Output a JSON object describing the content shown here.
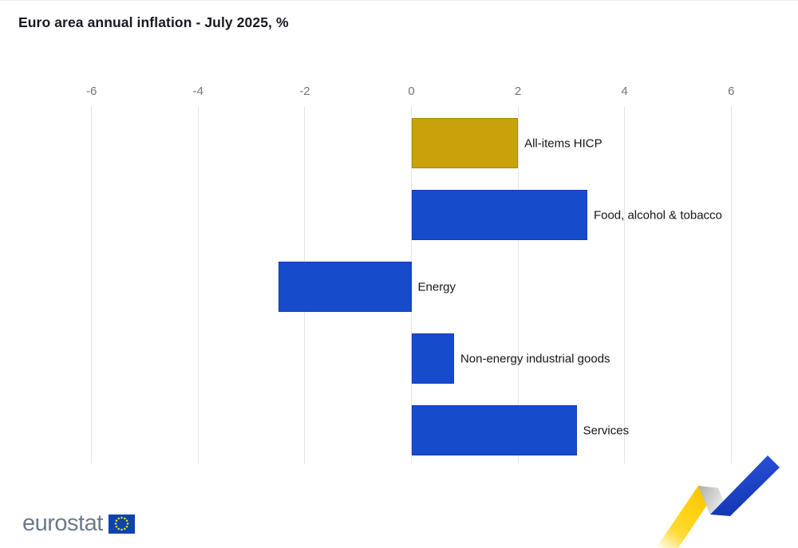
{
  "title": "Euro area annual inflation - July 2025, %",
  "chart_data": {
    "type": "bar",
    "orientation": "horizontal",
    "title": "Euro area annual inflation - July 2025, %",
    "unit": "%",
    "categories": [
      "All-items HICP",
      "Food, alcohol & tobacco",
      "Energy",
      "Non-energy industrial goods",
      "Services"
    ],
    "values": [
      2.0,
      3.3,
      -2.5,
      0.8,
      3.1
    ],
    "bar_colors": [
      "#C8A20A",
      "#164BCB",
      "#164BCB",
      "#164BCB",
      "#164BCB"
    ],
    "xticks": [
      -6,
      -4,
      -2,
      0,
      2,
      4,
      6
    ],
    "xlim": [
      -7.5,
      7.2
    ],
    "grid": true,
    "legend": false,
    "axis_position": "top"
  },
  "colors": {
    "gold": "#C8A20A",
    "blue": "#164BCB",
    "gridline": "#e4e4e4",
    "axis_text": "#757575",
    "label_text": "#141414",
    "title_text": "#181822",
    "logo_gray": "#6d7a88",
    "eu_flag_blue": "#0d43ad",
    "star_yellow": "#ffd617",
    "ribbon_yellow": "#ffd314",
    "ribbon_blue_top": "#2c55e0",
    "ribbon_blue_bottom": "#1134b0"
  },
  "footer": {
    "logo_text": "eurostat"
  }
}
